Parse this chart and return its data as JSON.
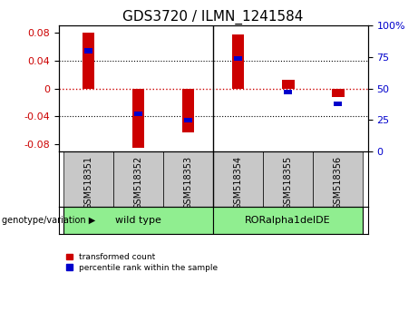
{
  "title": "GDS3720 / ILMN_1241584",
  "samples": [
    "GSM518351",
    "GSM518352",
    "GSM518353",
    "GSM518354",
    "GSM518355",
    "GSM518356"
  ],
  "red_values": [
    0.08,
    -0.085,
    -0.063,
    0.078,
    0.012,
    -0.012
  ],
  "blue_values_pct": [
    80,
    30,
    25,
    74,
    47,
    38
  ],
  "ylim_left": [
    -0.09,
    0.09
  ],
  "ylim_right": [
    0,
    100
  ],
  "yticks_left": [
    -0.08,
    -0.04,
    0,
    0.04,
    0.08
  ],
  "yticks_right": [
    0,
    25,
    50,
    75,
    100
  ],
  "group_label": "genotype/variation",
  "legend_red": "transformed count",
  "legend_blue": "percentile rank within the sample",
  "red_color": "#CC0000",
  "blue_color": "#0000CC",
  "zero_line_color": "#CC0000",
  "bar_width": 0.25,
  "title_fontsize": 11,
  "tick_fontsize": 8,
  "label_fontsize": 7,
  "bg_gray": "#C8C8C8",
  "bg_green": "#90EE90"
}
